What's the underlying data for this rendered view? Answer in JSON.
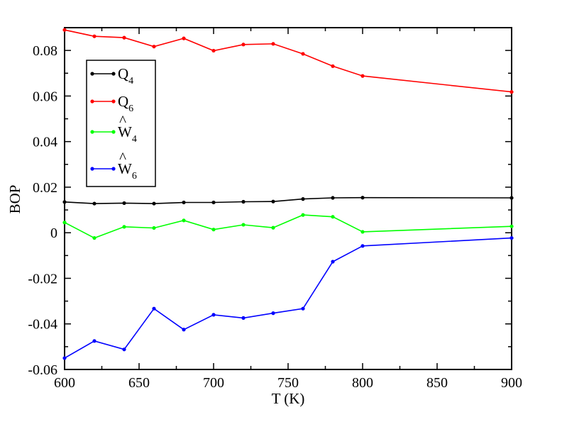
{
  "chart_data": {
    "type": "line",
    "xlabel": "T (K)",
    "ylabel": "BOP",
    "xlim": [
      600,
      900
    ],
    "ylim": [
      -0.06,
      0.09
    ],
    "x_ticks": [
      600,
      650,
      700,
      750,
      800,
      850,
      900
    ],
    "x_tick_labels": [
      "600",
      "650",
      "700",
      "750",
      "800",
      "850",
      "900"
    ],
    "y_ticks": [
      -0.06,
      -0.04,
      -0.02,
      0,
      0.02,
      0.04,
      0.06,
      0.08
    ],
    "y_tick_labels": [
      "-0.06",
      "-0.04",
      "-0.02",
      "0",
      "0.02",
      "0.04",
      "0.06",
      "0.08"
    ],
    "grid": false,
    "legend_position": "top-left",
    "series": [
      {
        "name": "Q4",
        "base": "Q",
        "sub": "4",
        "hat": false,
        "color": "#000000",
        "x": [
          600,
          620,
          640,
          660,
          680,
          700,
          720,
          740,
          760,
          780,
          800,
          900
        ],
        "values": [
          0.0135,
          0.0128,
          0.013,
          0.0128,
          0.0133,
          0.0133,
          0.0136,
          0.0137,
          0.0148,
          0.0153,
          0.0154,
          0.0153
        ]
      },
      {
        "name": "Q6",
        "base": "Q",
        "sub": "6",
        "hat": false,
        "color": "#ff0000",
        "x": [
          600,
          620,
          640,
          660,
          680,
          700,
          720,
          740,
          760,
          780,
          800,
          900
        ],
        "values": [
          0.089,
          0.0862,
          0.0856,
          0.0817,
          0.0853,
          0.0799,
          0.0826,
          0.0829,
          0.0785,
          0.0731,
          0.0688,
          0.0618
        ]
      },
      {
        "name": "W4",
        "base": "W",
        "sub": "4",
        "hat": true,
        "color": "#00ff00",
        "x": [
          600,
          620,
          640,
          660,
          680,
          700,
          720,
          740,
          760,
          780,
          800,
          900
        ],
        "values": [
          0.0045,
          -0.0023,
          0.0026,
          0.0021,
          0.0054,
          0.0014,
          0.0035,
          0.0022,
          0.0078,
          0.007,
          0.0004,
          0.0028
        ]
      },
      {
        "name": "W6",
        "base": "W",
        "sub": "6",
        "hat": true,
        "color": "#0000ff",
        "x": [
          600,
          620,
          640,
          660,
          680,
          700,
          720,
          740,
          760,
          780,
          800,
          900
        ],
        "values": [
          -0.055,
          -0.0475,
          -0.0512,
          -0.0333,
          -0.0425,
          -0.036,
          -0.0374,
          -0.0353,
          -0.0333,
          -0.0127,
          -0.0058,
          -0.0023
        ]
      }
    ]
  }
}
